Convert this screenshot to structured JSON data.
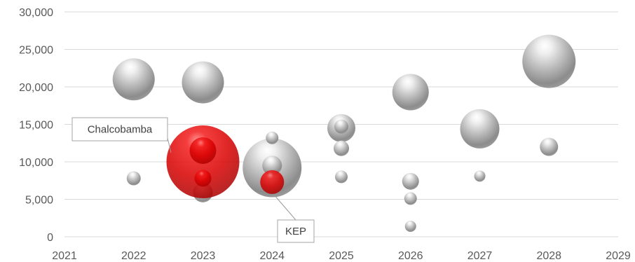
{
  "chart_data": {
    "type": "bubble",
    "x_ticks": [
      "2021",
      "2022",
      "2023",
      "2024",
      "2025",
      "2026",
      "2027",
      "2028",
      "2029"
    ],
    "y_ticks": [
      "0",
      "5,000",
      "10,000",
      "15,000",
      "20,000",
      "25,000",
      "30,000"
    ],
    "xlim": [
      2021,
      2029
    ],
    "ylim": [
      0,
      30000
    ],
    "grid": "horizontal",
    "colors": {
      "default": "#a6a6a6",
      "highlight": "#e00000"
    },
    "points": [
      {
        "x": 2022,
        "y": 21000,
        "size": 3.0
      },
      {
        "x": 2022,
        "y": 7800,
        "size": 1.0
      },
      {
        "x": 2023,
        "y": 20600,
        "size": 3.0
      },
      {
        "x": 2023,
        "y": 10000,
        "size": 5.2,
        "highlight": true
      },
      {
        "x": 2023,
        "y": 11500,
        "size": 1.9,
        "highlight": true
      },
      {
        "x": 2023,
        "y": 7800,
        "size": 1.2,
        "highlight": true
      },
      {
        "x": 2023,
        "y": 5900,
        "size": 1.4
      },
      {
        "x": 2024,
        "y": 9200,
        "size": 4.2
      },
      {
        "x": 2024,
        "y": 13200,
        "size": 0.9
      },
      {
        "x": 2024,
        "y": 9500,
        "size": 1.4
      },
      {
        "x": 2024,
        "y": 7300,
        "size": 1.7,
        "highlight": true
      },
      {
        "x": 2025,
        "y": 14500,
        "size": 2.0
      },
      {
        "x": 2025,
        "y": 14700,
        "size": 1.0
      },
      {
        "x": 2025,
        "y": 11800,
        "size": 1.1
      },
      {
        "x": 2025,
        "y": 8000,
        "size": 0.9
      },
      {
        "x": 2026,
        "y": 19300,
        "size": 2.6
      },
      {
        "x": 2026,
        "y": 7400,
        "size": 1.2
      },
      {
        "x": 2026,
        "y": 5100,
        "size": 0.9
      },
      {
        "x": 2026,
        "y": 1400,
        "size": 0.8
      },
      {
        "x": 2027,
        "y": 14400,
        "size": 2.8
      },
      {
        "x": 2027,
        "y": 8100,
        "size": 0.8
      },
      {
        "x": 2028,
        "y": 23400,
        "size": 3.8
      },
      {
        "x": 2028,
        "y": 12000,
        "size": 1.3
      }
    ],
    "annotations": [
      {
        "text": "Chalcobamba",
        "x": 2023,
        "y": 10000
      },
      {
        "text": "KEP",
        "x": 2024,
        "y": 7300
      }
    ]
  }
}
